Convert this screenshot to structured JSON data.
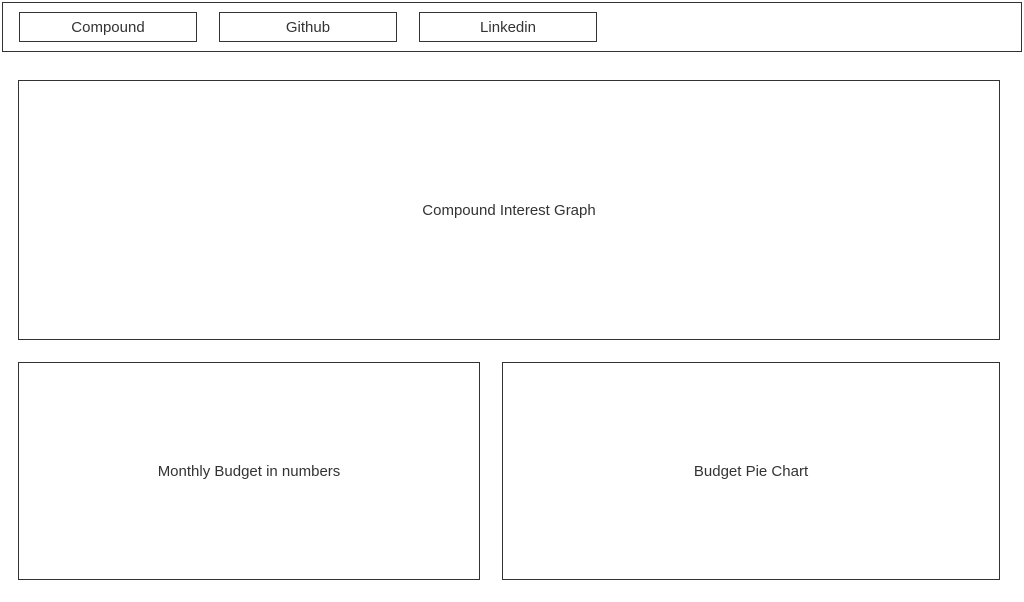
{
  "nav": {
    "items": [
      {
        "label": "Compound"
      },
      {
        "label": "Github"
      },
      {
        "label": "Linkedin"
      }
    ]
  },
  "panels": {
    "main": {
      "label": "Compound Interest Graph"
    },
    "left": {
      "label": "Monthly Budget in numbers"
    },
    "right": {
      "label": "Budget Pie Chart"
    }
  },
  "styling": {
    "border_color": "#333333",
    "background_color": "#ffffff",
    "text_color": "#333333",
    "font_size": 15,
    "nav_item_width": 178,
    "nav_item_height": 30,
    "panel_large_width": 982,
    "panel_large_height": 260,
    "panel_small_left_width": 462,
    "panel_small_right_width": 498,
    "panel_small_height": 218
  }
}
